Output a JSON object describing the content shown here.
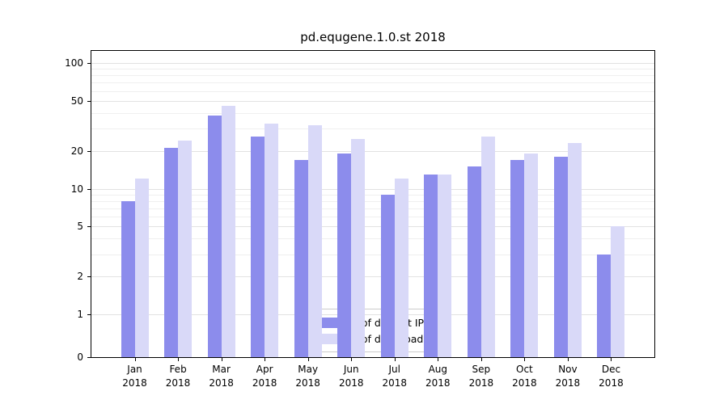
{
  "title": "pd.equgene.1.0.st 2018",
  "chart_data": {
    "type": "bar",
    "title": "pd.equgene.1.0.st 2018",
    "categories": [
      "Jan",
      "Feb",
      "Mar",
      "Apr",
      "May",
      "Jun",
      "Jul",
      "Aug",
      "Sep",
      "Oct",
      "Nov",
      "Dec"
    ],
    "category_year": "2018",
    "series": [
      {
        "name": "Nb of distinct IPs",
        "color": "#8c8cec",
        "values": [
          8,
          21,
          38,
          26,
          17,
          19,
          9,
          13,
          15,
          17,
          18,
          3
        ]
      },
      {
        "name": "Nb of downloads",
        "color": "#d9d9f8",
        "values": [
          12,
          24,
          46,
          33,
          32,
          25,
          12,
          13,
          26,
          19,
          23,
          5
        ]
      }
    ],
    "yscale": "symlog",
    "y_ticks": [
      0,
      1,
      2,
      5,
      10,
      20,
      50,
      100
    ],
    "y_minor_gridlines": [
      3,
      4,
      6,
      7,
      8,
      9,
      30,
      40,
      60,
      70,
      80,
      90
    ],
    "ylim": [
      0,
      125
    ],
    "xlabel": "",
    "ylabel": "",
    "grid": true,
    "legend": {
      "position": "lower center",
      "entries": [
        "Nb of distinct IPs",
        "Nb of downloads"
      ]
    }
  },
  "colors": {
    "distinct_ips": "#8c8cec",
    "downloads": "#d9d9f8",
    "grid_major": "#e2e2e2",
    "grid_minor": "#efefef",
    "axis": "#000000",
    "text": "#000000",
    "legend_border": "#cccccc",
    "background": "#ffffff"
  }
}
